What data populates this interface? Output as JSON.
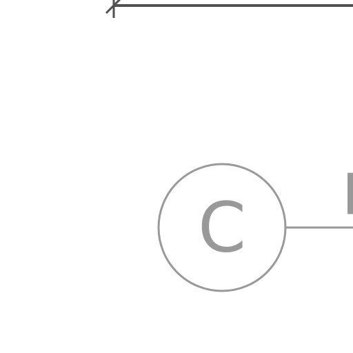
{
  "diagram": {
    "nodes": [
      {
        "id": "C",
        "label": "C"
      },
      {
        "id": "E",
        "label": "E"
      }
    ],
    "edges": [
      {
        "from": "C",
        "to": "E"
      }
    ],
    "colors": {
      "dimension_line": "#505050",
      "node_stroke": "#999999",
      "node_text": "#999999",
      "background": "#ffffff"
    }
  }
}
